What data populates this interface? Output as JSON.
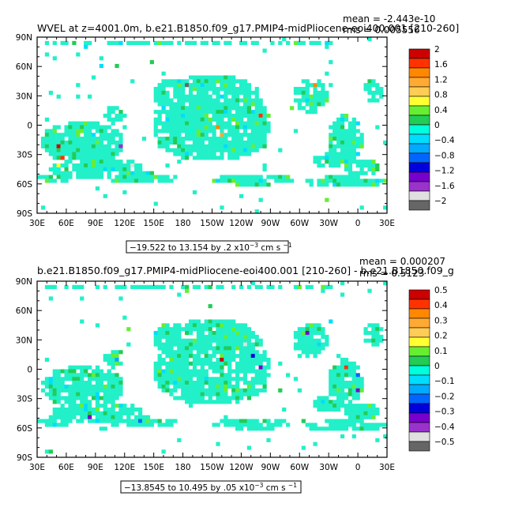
{
  "chart_data": [
    {
      "type": "heatmap",
      "title": "WVEL at z=4001.0m, b.e21.B1850.f09_g17.PMIP4-midPliocene-eoi400.001 [210-260]",
      "stats": {
        "mean": "mean = -2.443e-10",
        "rms": "rms = 0.005556"
      },
      "x_ticks": [
        "30E",
        "60E",
        "90E",
        "120E",
        "150E",
        "180",
        "150W",
        "120W",
        "90W",
        "60W",
        "30W",
        "0",
        "30E"
      ],
      "y_ticks": [
        "90N",
        "60N",
        "30N",
        "0",
        "30S",
        "60S",
        "90S"
      ],
      "xlim": [
        30,
        390
      ],
      "ylim": [
        -90,
        90
      ],
      "range_label": "−19.522 to 13.154 by .2 x10",
      "range_exp": "−3",
      "range_units": "cm s",
      "range_units_exp": "−1",
      "colorbar_levels": [
        "2",
        "1.6",
        "1.2",
        "0.8",
        "0.4",
        "0",
        "−0.4",
        "−0.8",
        "−1.2",
        "−1.6",
        "−2"
      ],
      "colorbar_colors": [
        "#cc0000",
        "#ff3300",
        "#ff8800",
        "#ffaa33",
        "#ffcc55",
        "#ffff33",
        "#66ee33",
        "#22cc55",
        "#00ffdd",
        "#00ddff",
        "#00aaff",
        "#0066ff",
        "#0000dd",
        "#7700cc",
        "#9933cc",
        "#e0e0e0",
        "#666666"
      ],
      "dominant_color": "#22f0c8",
      "grid": false,
      "legend": "right"
    },
    {
      "type": "heatmap",
      "title": "b.e21.B1850.f09_g17.PMIP4-midPliocene-eoi400.001 [210-260] - b.e21.B1850.f09_g",
      "stats": {
        "mean": "mean = 0.000207",
        "rms": "rms = 0.5123"
      },
      "x_ticks": [
        "30E",
        "60E",
        "90E",
        "120E",
        "150E",
        "180",
        "150W",
        "120W",
        "90W",
        "60W",
        "30W",
        "0",
        "30E"
      ],
      "y_ticks": [
        "90N",
        "60N",
        "30N",
        "0",
        "30S",
        "60S",
        "90S"
      ],
      "xlim": [
        30,
        390
      ],
      "ylim": [
        -90,
        90
      ],
      "range_label": "−13.8545 to 10.495 by .05 x10",
      "range_exp": "−3",
      "range_units": "cm s",
      "range_units_exp": "−1",
      "colorbar_levels": [
        "0.5",
        "0.4",
        "0.3",
        "0.2",
        "0.1",
        "0",
        "−0.1",
        "−0.2",
        "−0.3",
        "−0.4",
        "−0.5"
      ],
      "colorbar_colors": [
        "#cc0000",
        "#ff3300",
        "#ff8800",
        "#ffaa33",
        "#ffcc55",
        "#ffff33",
        "#66ee33",
        "#22cc55",
        "#00ffdd",
        "#00ddff",
        "#00aaff",
        "#0066ff",
        "#0000dd",
        "#7700cc",
        "#9933cc",
        "#e0e0e0",
        "#666666"
      ],
      "dominant_color": "#22f0c8",
      "grid": false,
      "legend": "right"
    }
  ]
}
